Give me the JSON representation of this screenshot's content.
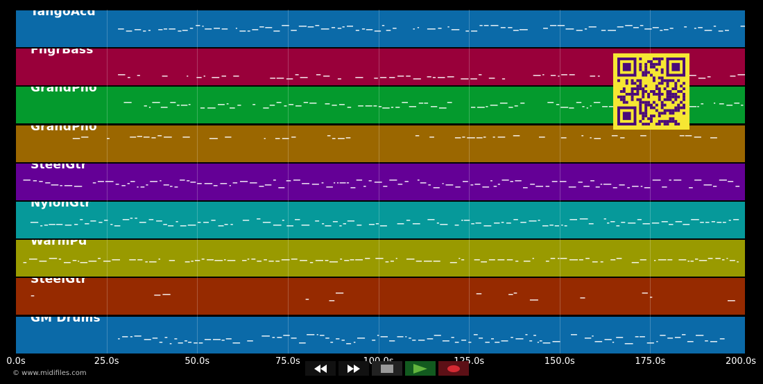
{
  "tracks": [
    {
      "name": "TangoAcd",
      "color": "#0b6aa8"
    },
    {
      "name": "FngrBass",
      "color": "#99003a"
    },
    {
      "name": "GrandPno",
      "color": "#049a2d"
    },
    {
      "name": "GrandPno",
      "color": "#9b6700"
    },
    {
      "name": "SteelGtr",
      "color": "#640096"
    },
    {
      "name": "NylonGtr",
      "color": "#06999a"
    },
    {
      "name": "WarmPd",
      "color": "#999a00"
    },
    {
      "name": "SteelGtr",
      "color": "#962a00"
    },
    {
      "name": "GM Drums",
      "color": "#0b6aa8"
    }
  ],
  "timeline": {
    "ticks": [
      "0.0s",
      "25.0s",
      "50.0s",
      "75.0s",
      "100.0s",
      "125.0s",
      "150.0s",
      "175.0s",
      "200.0s"
    ]
  },
  "watermark": "© www.midifiles.com",
  "controls": [
    {
      "name": "rewind-button",
      "icon": "rewind-icon"
    },
    {
      "name": "fast-forward-button",
      "icon": "fast-forward-icon"
    },
    {
      "name": "stop-button",
      "icon": "stop-icon"
    },
    {
      "name": "play-button",
      "icon": "play-icon"
    },
    {
      "name": "record-button",
      "icon": "record-icon"
    }
  ],
  "qr_code": {
    "icon": "qr-code-icon",
    "color": "#f6e733"
  }
}
